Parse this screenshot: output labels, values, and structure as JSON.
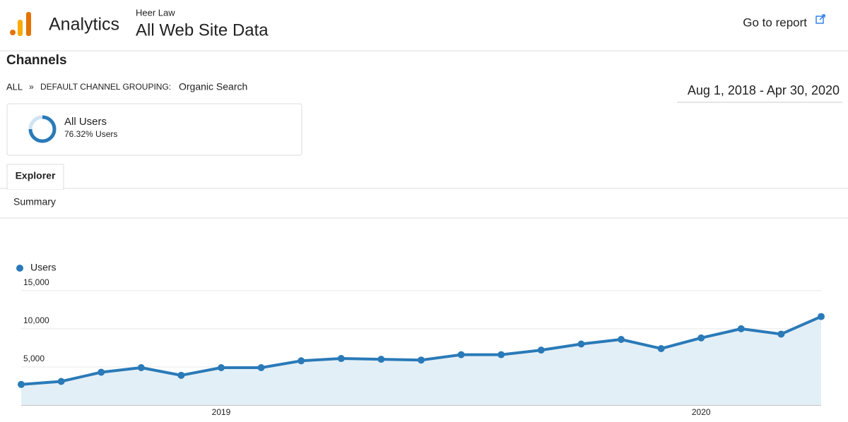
{
  "header": {
    "product": "Analytics",
    "account": "Heer Law",
    "property": "All Web Site Data",
    "report_link": "Go to report"
  },
  "section_title": "Channels",
  "breadcrumb": {
    "root": "ALL",
    "separator": "»",
    "dimension": "DEFAULT CHANNEL GROUPING:",
    "value": "Organic Search"
  },
  "date_range": "Aug 1, 2018 - Apr 30, 2020",
  "segment": {
    "name": "All Users",
    "share": "76.32% Users"
  },
  "tabs": [
    "Explorer"
  ],
  "subtab": "Summary",
  "chart_data": {
    "type": "line",
    "categories": [
      null,
      null,
      null,
      null,
      null,
      "2019",
      null,
      null,
      null,
      null,
      null,
      null,
      null,
      null,
      null,
      null,
      null,
      "2020",
      null,
      null,
      null
    ],
    "series": [
      {
        "name": "Users",
        "color": "#2a7ab8",
        "values": [
          2700,
          3100,
          4300,
          4900,
          3900,
          4900,
          4900,
          5800,
          6100,
          6000,
          5900,
          6600,
          6600,
          7200,
          8000,
          8600,
          7400,
          8800,
          10000,
          9300,
          11600
        ]
      }
    ],
    "ylim": [
      0,
      16000
    ],
    "yticks": [
      {
        "value": 5000,
        "label": "5,000"
      },
      {
        "value": 10000,
        "label": "10,000"
      },
      {
        "value": 15000,
        "label": "15,000"
      }
    ],
    "grid": true
  }
}
